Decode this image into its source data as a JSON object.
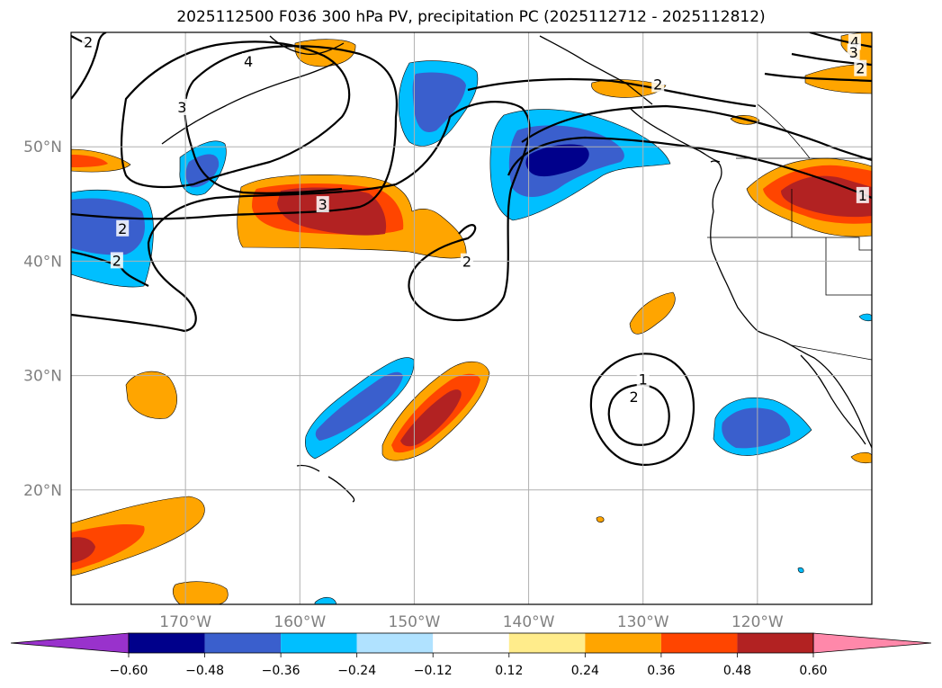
{
  "title": "2025112500 F036 300 hPa PV, precipitation PC (2025112712 - 2025112812)",
  "map": {
    "lon_range": [
      -180,
      -110
    ],
    "lat_range": [
      10,
      60
    ],
    "lon_ticks": [
      {
        "lon": -170,
        "label": "170°W"
      },
      {
        "lon": -160,
        "label": "160°W"
      },
      {
        "lon": -150,
        "label": "150°W"
      },
      {
        "lon": -140,
        "label": "140°W"
      },
      {
        "lon": -130,
        "label": "130°W"
      },
      {
        "lon": -120,
        "label": "120°W"
      }
    ],
    "lat_ticks": [
      {
        "lat": 20,
        "label": "20°N"
      },
      {
        "lat": 30,
        "label": "30°N"
      },
      {
        "lat": 40,
        "label": "40°N"
      },
      {
        "lat": 50,
        "label": "50°N"
      }
    ],
    "grid": true
  },
  "colorbar": {
    "colors": [
      "#9932cc",
      "#00008b",
      "#3a5fcd",
      "#00bfff",
      "#b0e2ff",
      "#ffffff",
      "#ffec8b",
      "#ffa500",
      "#ff4500",
      "#b22222",
      "#ff88aa"
    ],
    "labels": [
      "−0.60",
      "−0.48",
      "−0.36",
      "−0.24",
      "−0.12",
      "0.12",
      "0.24",
      "0.36",
      "0.48",
      "0.60"
    ]
  },
  "contour_labels": [
    {
      "text": "2",
      "lon": -178.5,
      "lat": 59.1
    },
    {
      "text": "4",
      "lon": -164.5,
      "lat": 57.4
    },
    {
      "text": "3",
      "lon": -170.3,
      "lat": 53.4
    },
    {
      "text": "3",
      "lon": -158.0,
      "lat": 44.9
    },
    {
      "text": "2",
      "lon": -175.5,
      "lat": 42.8
    },
    {
      "text": "2",
      "lon": -176.0,
      "lat": 40.0
    },
    {
      "text": "2",
      "lon": -145.4,
      "lat": 39.9
    },
    {
      "text": "2",
      "lon": -128.7,
      "lat": 55.4
    },
    {
      "text": "1",
      "lon": -130.0,
      "lat": 29.6
    },
    {
      "text": "2",
      "lon": -130.8,
      "lat": 28.1
    },
    {
      "text": "4",
      "lon": -111.5,
      "lat": 59.1
    },
    {
      "text": "3",
      "lon": -111.6,
      "lat": 58.2
    },
    {
      "text": "2",
      "lon": -111.0,
      "lat": 56.8
    },
    {
      "text": "1",
      "lon": -110.8,
      "lat": 45.7
    }
  ]
}
